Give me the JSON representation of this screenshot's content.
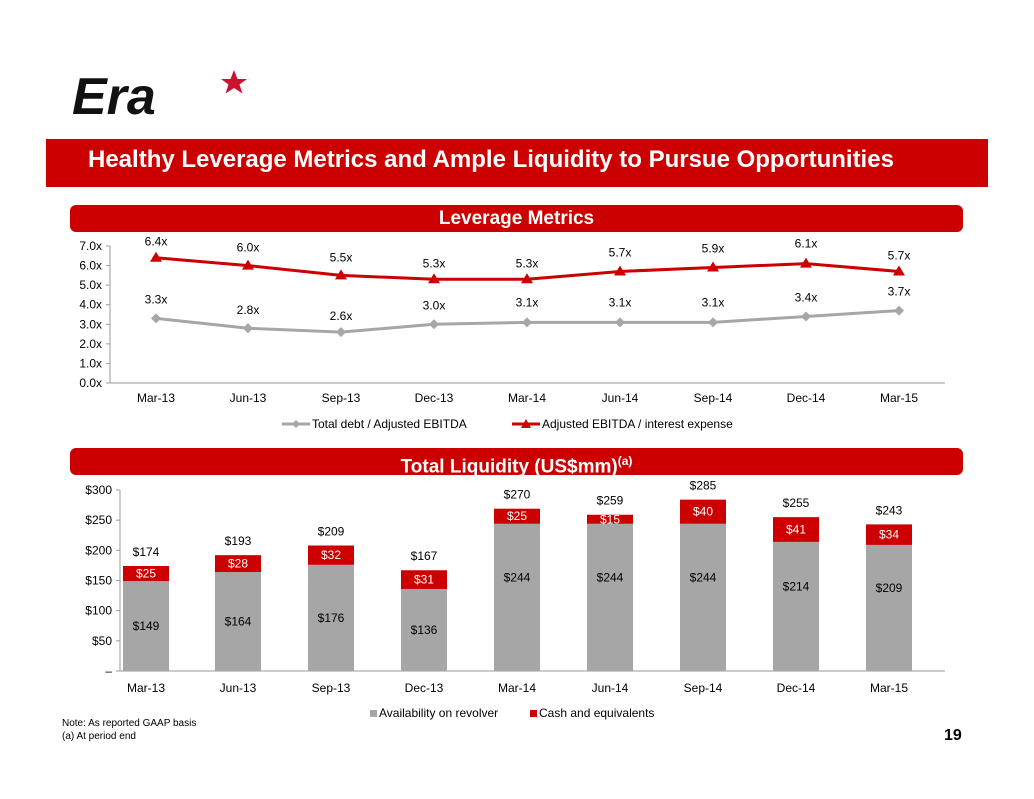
{
  "logo": {
    "text": "Era",
    "icon": "star-icon"
  },
  "header": {
    "title": "Healthy Leverage Metrics and Ample Liquidity to Pursue Opportunities"
  },
  "colors": {
    "brand_red": "#cc0000",
    "gray": "#a6a6a6"
  },
  "chart_data": [
    {
      "type": "line",
      "title": "Leverage Metrics",
      "categories": [
        "Mar-13",
        "Jun-13",
        "Sep-13",
        "Dec-13",
        "Mar-14",
        "Jun-14",
        "Sep-14",
        "Dec-14",
        "Mar-15"
      ],
      "series": [
        {
          "name": "Total debt / Adjusted EBITDA",
          "values": [
            3.3,
            2.8,
            2.6,
            3.0,
            3.1,
            3.1,
            3.1,
            3.4,
            3.7
          ],
          "labels": [
            "3.3x",
            "2.8x",
            "2.6x",
            "3.0x",
            "3.1x",
            "3.1x",
            "3.1x",
            "3.4x",
            "3.7x"
          ],
          "color": "#a6a6a6",
          "marker": "diamond"
        },
        {
          "name": "Adjusted EBITDA / interest expense",
          "values": [
            6.4,
            6.0,
            5.5,
            5.3,
            5.3,
            5.7,
            5.9,
            6.1,
            5.7
          ],
          "labels": [
            "6.4x",
            "6.0x",
            "5.5x",
            "5.3x",
            "5.3x",
            "5.7x",
            "5.9x",
            "6.1x",
            "5.7x"
          ],
          "color": "#cc0000",
          "marker": "triangle"
        }
      ],
      "ylim": [
        0,
        7
      ],
      "yticks": [
        "0.0x",
        "1.0x",
        "2.0x",
        "3.0x",
        "4.0x",
        "5.0x",
        "6.0x",
        "7.0x"
      ],
      "xlabel": "",
      "ylabel": "",
      "grid": false,
      "legend": "bottom"
    },
    {
      "type": "bar",
      "stacked": true,
      "title": "Total Liquidity (US$mm)",
      "title_superscript": "(a)",
      "categories": [
        "Mar-13",
        "Jun-13",
        "Sep-13",
        "Dec-13",
        "Mar-14",
        "Jun-14",
        "Sep-14",
        "Dec-14",
        "Mar-15"
      ],
      "series": [
        {
          "name": "Availability on revolver",
          "values": [
            149,
            164,
            176,
            136,
            244,
            244,
            244,
            214,
            209
          ],
          "labels": [
            "$149",
            "$164",
            "$176",
            "$136",
            "$244",
            "$244",
            "$244",
            "$214",
            "$209"
          ],
          "color": "#a6a6a6"
        },
        {
          "name": "Cash and equivalents",
          "values": [
            25,
            28,
            32,
            31,
            25,
            15,
            40,
            41,
            34
          ],
          "labels": [
            "$25",
            "$28",
            "$32",
            "$31",
            "$25",
            "$15",
            "$40",
            "$41",
            "$34"
          ],
          "color": "#cc0000"
        }
      ],
      "totals": [
        "$174",
        "$193",
        "$209",
        "$167",
        "$270",
        "$259",
        "$285",
        "$255",
        "$243"
      ],
      "ylim": [
        0,
        300
      ],
      "yticks": [
        "–",
        "$50",
        "$100",
        "$150",
        "$200",
        "$250",
        "$300"
      ],
      "xlabel": "",
      "ylabel": "",
      "grid": false,
      "legend": "bottom"
    }
  ],
  "footer": {
    "note1": "Note:  As reported GAAP basis",
    "note2": "(a)  At period end",
    "page_number": "19"
  }
}
